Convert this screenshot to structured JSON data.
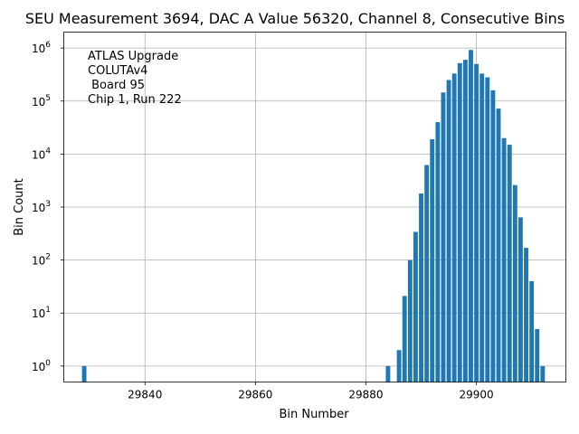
{
  "chart_data": {
    "type": "bar",
    "title": "SEU Measurement 3694, DAC A Value 56320, Channel 8, Consecutive Bins",
    "xlabel": "Bin Number",
    "ylabel": "Bin Count",
    "yscale": "log",
    "xlim": [
      29825.3,
      29916.2
    ],
    "ylim": [
      0.5,
      2000000
    ],
    "grid": true,
    "bar_color": "#1f77b4",
    "xticks": [
      29840,
      29860,
      29880,
      29900
    ],
    "xtick_labels": [
      "29840",
      "29860",
      "29880",
      "29900"
    ],
    "yticks": [
      1,
      10,
      100,
      1000,
      10000,
      100000,
      1000000
    ],
    "ytick_labels": [
      {
        "base": "10",
        "exp": "0"
      },
      {
        "base": "10",
        "exp": "1"
      },
      {
        "base": "10",
        "exp": "2"
      },
      {
        "base": "10",
        "exp": "3"
      },
      {
        "base": "10",
        "exp": "4"
      },
      {
        "base": "10",
        "exp": "5"
      },
      {
        "base": "10",
        "exp": "6"
      }
    ],
    "annotation_lines": [
      "ATLAS Upgrade",
      "COLUTAv4",
      " Board 95",
      "Chip 1, Run 222"
    ],
    "bins": [
      29829,
      29884,
      29886,
      29887,
      29888,
      29889,
      29890,
      29891,
      29892,
      29893,
      29894,
      29895,
      29896,
      29897,
      29898,
      29899,
      29900,
      29901,
      29902,
      29903,
      29904,
      29905,
      29906,
      29907,
      29908,
      29909,
      29910,
      29911,
      29912
    ],
    "values": [
      1,
      1,
      2,
      21,
      100,
      340,
      1800,
      6200,
      19000,
      40000,
      145000,
      250000,
      330000,
      520000,
      600000,
      920000,
      500000,
      330000,
      280000,
      160000,
      72000,
      20000,
      15000,
      2600,
      640,
      170,
      40,
      5,
      1
    ]
  }
}
